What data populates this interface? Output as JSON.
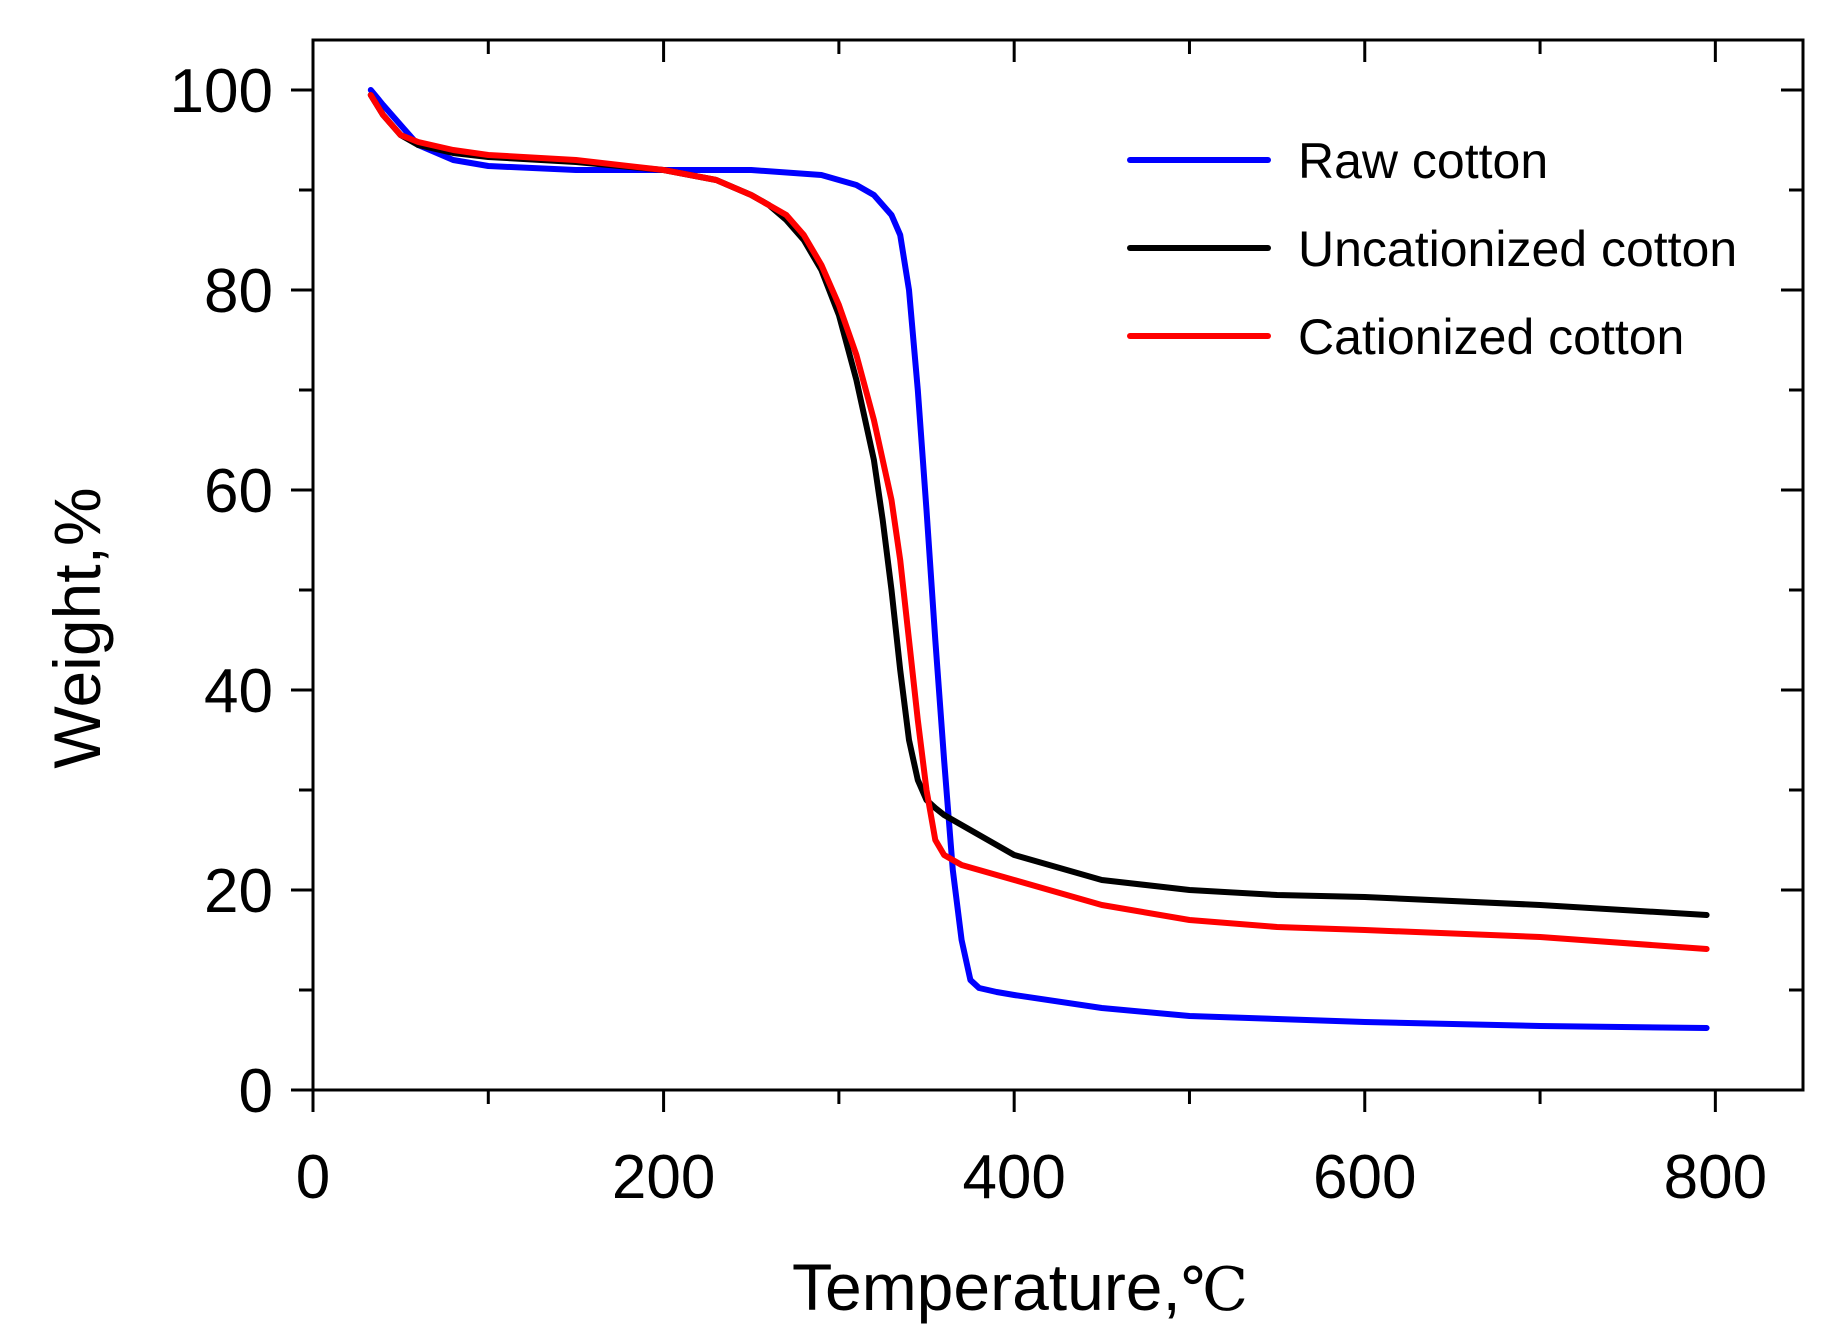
{
  "chart_data": {
    "type": "line",
    "title": "",
    "xlabel": "Temperature,",
    "xlabel_unit": "℃",
    "ylabel": "Weight,%",
    "xlim": [
      0,
      850
    ],
    "ylim": [
      0,
      105
    ],
    "xticks": [
      0,
      200,
      400,
      600,
      800
    ],
    "xtick_labels": [
      "0",
      "200",
      "400",
      "600",
      "800"
    ],
    "xminor": [
      100,
      300,
      500,
      700
    ],
    "yticks": [
      0,
      20,
      40,
      60,
      80,
      100
    ],
    "ytick_labels": [
      "0",
      "20",
      "40",
      "60",
      "80",
      "100"
    ],
    "yminor": [
      10,
      30,
      50,
      70,
      90
    ],
    "grid": false,
    "legend_position": "top-right",
    "series": [
      {
        "name": "Raw cotton",
        "color": "#0000ff",
        "x": [
          33,
          40,
          50,
          60,
          80,
          100,
          150,
          200,
          250,
          290,
          310,
          320,
          330,
          335,
          340,
          345,
          350,
          355,
          360,
          365,
          370,
          375,
          380,
          385,
          390,
          400,
          450,
          500,
          600,
          700,
          795
        ],
        "y": [
          100,
          98.5,
          96.5,
          94.5,
          93,
          92.4,
          92,
          92,
          92,
          91.5,
          90.5,
          89.5,
          87.5,
          85.5,
          80,
          70,
          58,
          45,
          33,
          22,
          15,
          11,
          10.2,
          10,
          9.8,
          9.5,
          8.2,
          7.4,
          6.8,
          6.4,
          6.2
        ]
      },
      {
        "name": "Uncationized cotton",
        "color": "#000000",
        "x": [
          33,
          40,
          50,
          60,
          80,
          100,
          150,
          200,
          230,
          250,
          260,
          270,
          280,
          290,
          300,
          310,
          320,
          325,
          330,
          335,
          340,
          345,
          350,
          355,
          360,
          370,
          400,
          450,
          500,
          550,
          600,
          700,
          795
        ],
        "y": [
          99.5,
          97.5,
          95.5,
          94.5,
          93.7,
          93.3,
          92.8,
          92,
          91,
          89.5,
          88.5,
          87,
          85,
          82,
          77.5,
          71,
          63,
          57,
          50,
          42,
          35,
          31,
          29,
          28.2,
          27.5,
          26.5,
          23.5,
          21,
          20,
          19.5,
          19.3,
          18.5,
          17.5
        ]
      },
      {
        "name": "Cationized cotton",
        "color": "#ff0000",
        "x": [
          33,
          40,
          50,
          60,
          80,
          100,
          150,
          200,
          230,
          250,
          260,
          270,
          280,
          290,
          300,
          310,
          320,
          330,
          335,
          340,
          345,
          350,
          355,
          360,
          365,
          370,
          400,
          450,
          500,
          550,
          600,
          700,
          795
        ],
        "y": [
          99.5,
          97.5,
          95.5,
          94.8,
          94,
          93.5,
          93,
          92,
          91,
          89.5,
          88.5,
          87.5,
          85.5,
          82.5,
          78.5,
          73.5,
          67,
          59,
          53,
          45,
          37,
          30,
          25,
          23.5,
          23,
          22.5,
          21,
          18.5,
          17,
          16.3,
          16,
          15.3,
          14.1
        ]
      }
    ]
  }
}
